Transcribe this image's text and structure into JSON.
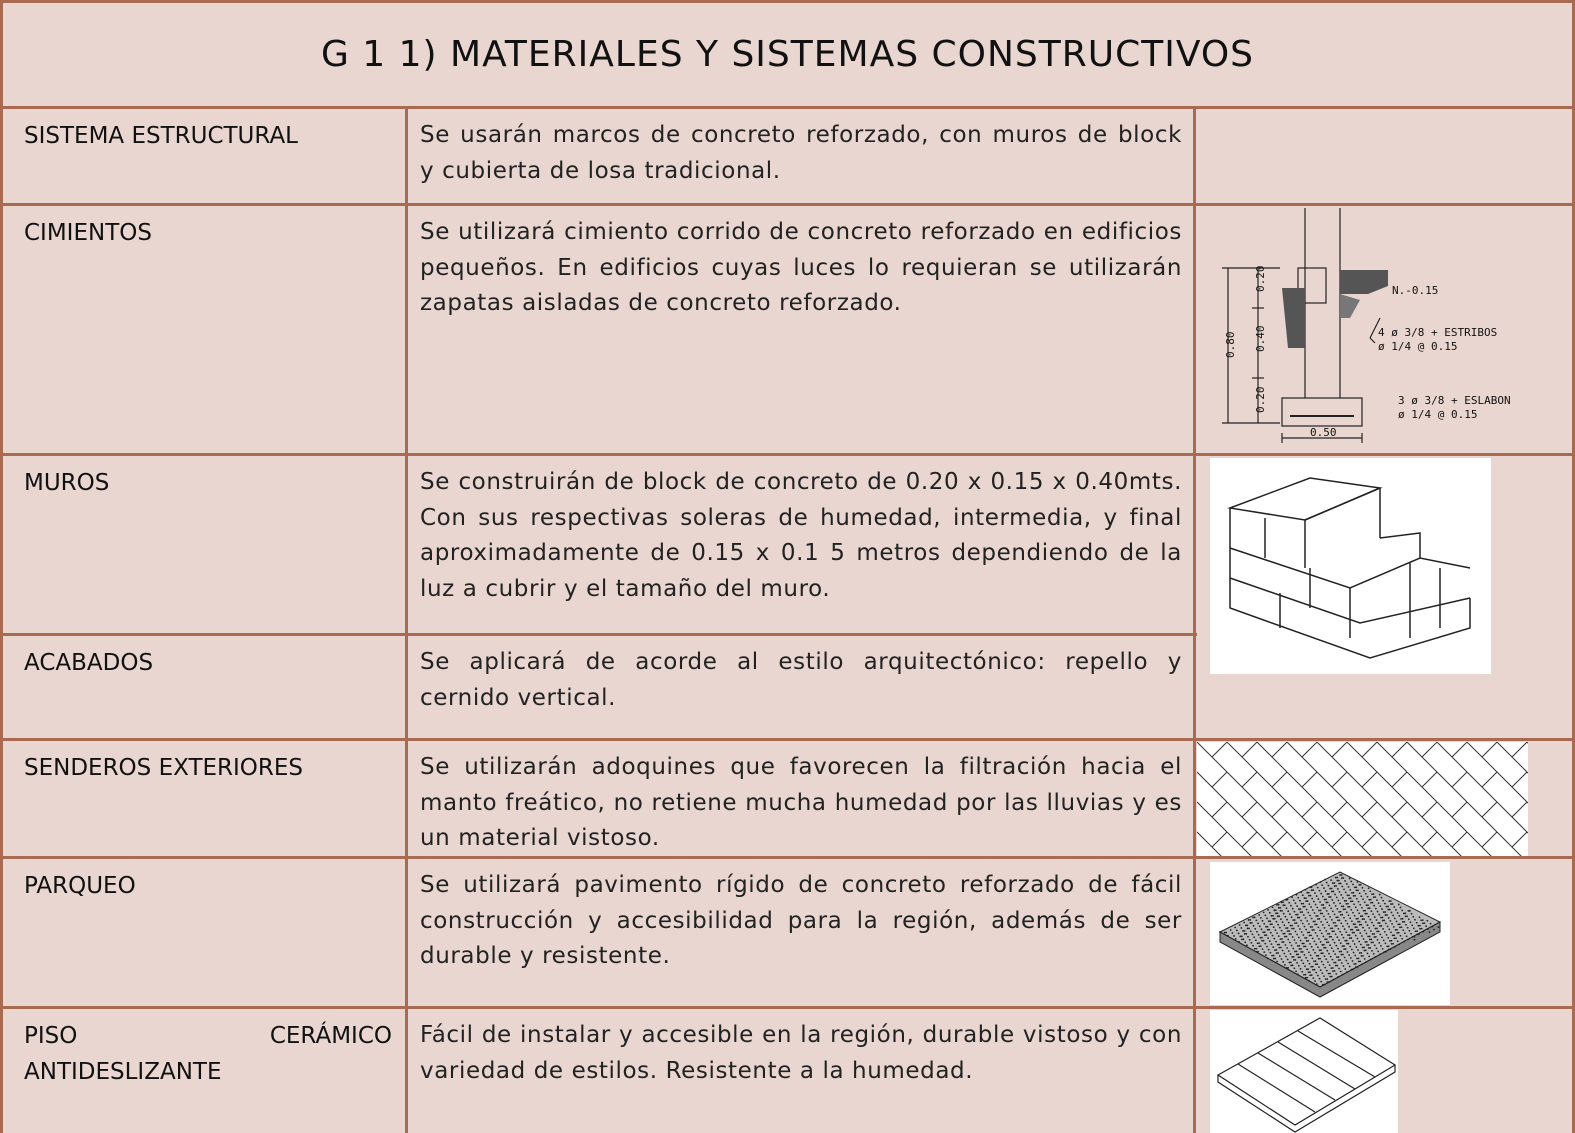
{
  "header": {
    "title": "G 1 1) MATERIALES Y SISTEMAS CONSTRUCTIVOS"
  },
  "table": {
    "rows": [
      {
        "label": "SISTEMA ESTRUCTURAL",
        "description": "Se usarán marcos de concreto reforzado, con muros de block y cubierta de losa tradicional."
      },
      {
        "label": "CIMIENTOS",
        "description": "Se utilizará cimiento corrido de concreto reforzado en edificios pequeños. En edificios cuyas luces lo requieran se utilizarán zapatas aisladas de concreto reforzado."
      },
      {
        "label": "MUROS",
        "description": "Se construirán de block de concreto de 0.20 x 0.15 x 0.40mts. Con sus respectivas soleras de humedad, intermedia, y final aproximadamente de 0.15 x 0.1 5 metros dependiendo de la luz a cubrir y el tamaño del muro."
      },
      {
        "label": "ACABADOS",
        "description": "Se aplicará de acorde al estilo arquitectónico: repello y cernido vertical."
      },
      {
        "label": "SENDEROS EXTERIORES",
        "description": "Se utilizarán adoquines que favorecen la filtración hacia el manto freático, no retiene mucha humedad por las lluvias y es un material vistoso."
      },
      {
        "label": "PARQUEO",
        "description": "Se utilizará pavimento rígido de concreto reforzado de fácil construcción y accesibilidad para la región, además de ser durable y resistente."
      },
      {
        "label": "PISO CERÁMICO ANTIDESLIZANTE",
        "description": "Fácil de instalar y accesible en la región, durable vistoso y con variedad de estilos. Resistente a la humedad."
      }
    ]
  },
  "foundation_drawing": {
    "labels": [
      "0.20",
      "0.40",
      "0.20",
      "0.80",
      "N.-0.15",
      "4 ø 3/8 + ESTRIBOS",
      "ø 1/4 @ 0.15",
      "3 ø 3/8 + ESLABON",
      "ø 1/4 @ 0.15",
      "0.50"
    ]
  }
}
